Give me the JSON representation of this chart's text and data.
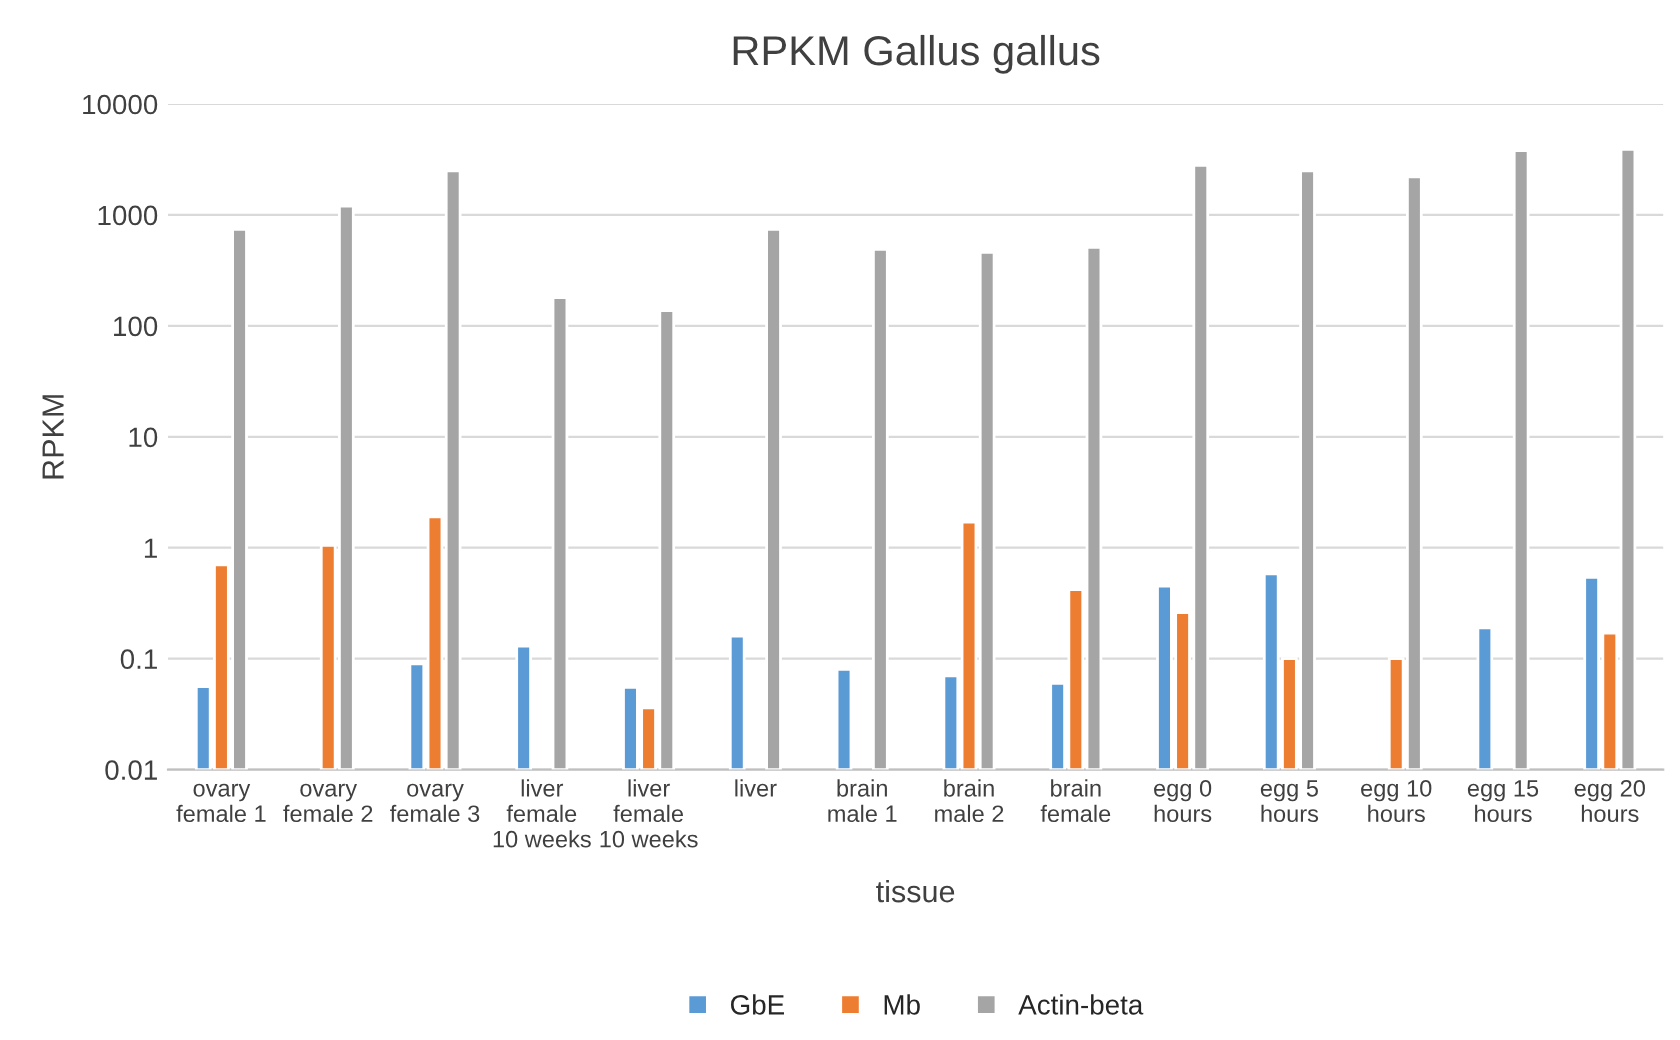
{
  "chart_data": {
    "type": "bar",
    "title": "RPKM Gallus gallus",
    "xlabel": "tissue",
    "ylabel": "RPKM",
    "categories": [
      "ovary female 1",
      "ovary female 2",
      "ovary female 3",
      "liver female 10 weeks",
      "liver female 10 weeks",
      "liver",
      "brain male 1",
      "brain male 2",
      "brain female",
      "egg 0 hours",
      "egg 5 hours",
      "egg 10 hours",
      "egg 15 hours",
      "egg 20 hours"
    ],
    "series": [
      {
        "name": "GbE",
        "color": "#5b9bd5",
        "values": [
          0.056,
          null,
          0.09,
          0.13,
          0.055,
          0.16,
          0.08,
          0.07,
          0.06,
          0.45,
          0.58,
          null,
          0.19,
          0.54
        ]
      },
      {
        "name": "Mb",
        "color": "#ed7d31",
        "values": [
          0.7,
          1.05,
          1.9,
          null,
          0.036,
          null,
          null,
          1.7,
          0.42,
          0.26,
          0.1,
          0.1,
          null,
          0.17
        ]
      },
      {
        "name": "Actin-beta",
        "color": "#a5a5a5",
        "values": [
          740,
          1200,
          2500,
          180,
          137,
          740,
          490,
          460,
          510,
          2800,
          2500,
          2200,
          3800,
          3900
        ]
      }
    ],
    "log": "y",
    "ylim": [
      0.01,
      10000
    ],
    "yticks": [
      {
        "value": 0.01,
        "label": "0.01"
      },
      {
        "value": 0.1,
        "label": "0.1"
      },
      1,
      10,
      100,
      1000,
      10000
    ],
    "grid": "y",
    "legend": "bottom"
  }
}
